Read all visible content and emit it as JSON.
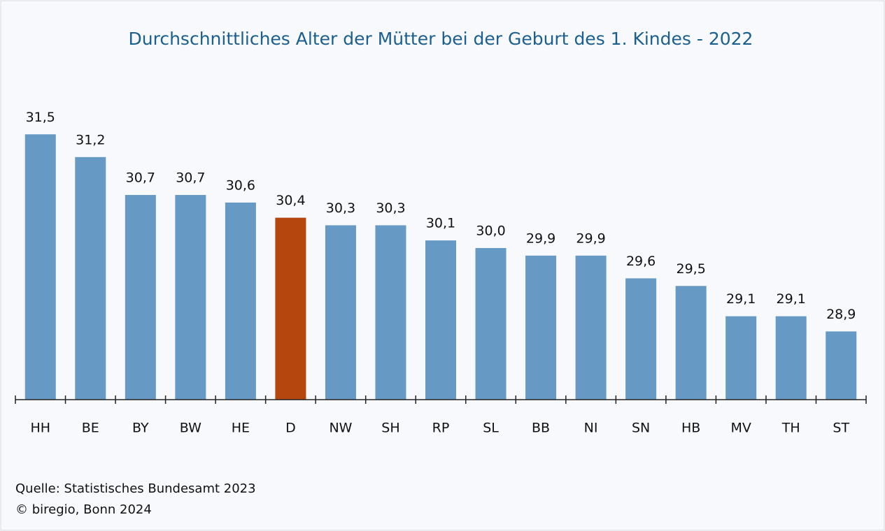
{
  "chart_data": {
    "type": "bar",
    "title": "Durchschnittliches Alter der Mütter bei der Geburt des 1. Kindes - 2022",
    "categories": [
      "HH",
      "BE",
      "BY",
      "BW",
      "HE",
      "D",
      "NW",
      "SH",
      "RP",
      "SL",
      "BB",
      "NI",
      "SN",
      "HB",
      "MV",
      "TH",
      "ST"
    ],
    "values": [
      31.5,
      31.2,
      30.7,
      30.7,
      30.6,
      30.4,
      30.3,
      30.3,
      30.1,
      30.0,
      29.9,
      29.9,
      29.6,
      29.5,
      29.1,
      29.1,
      28.9
    ],
    "value_labels": [
      "31,5",
      "31,2",
      "30,7",
      "30,7",
      "30,6",
      "30,4",
      "30,3",
      "30,3",
      "30,1",
      "30,0",
      "29,9",
      "29,9",
      "29,6",
      "29,5",
      "29,1",
      "29,1",
      "28,9"
    ],
    "colors": [
      "#6699c4",
      "#6699c4",
      "#6699c4",
      "#6699c4",
      "#6699c4",
      "#b5460e",
      "#6699c4",
      "#6699c4",
      "#6699c4",
      "#6699c4",
      "#6699c4",
      "#6699c4",
      "#6699c4",
      "#6699c4",
      "#6699c4",
      "#6699c4",
      "#6699c4"
    ],
    "ylim": [
      28,
      32
    ],
    "source": "Quelle: Statistisches Bundesamt 2023",
    "copyright": "© biregio, Bonn 2024"
  }
}
